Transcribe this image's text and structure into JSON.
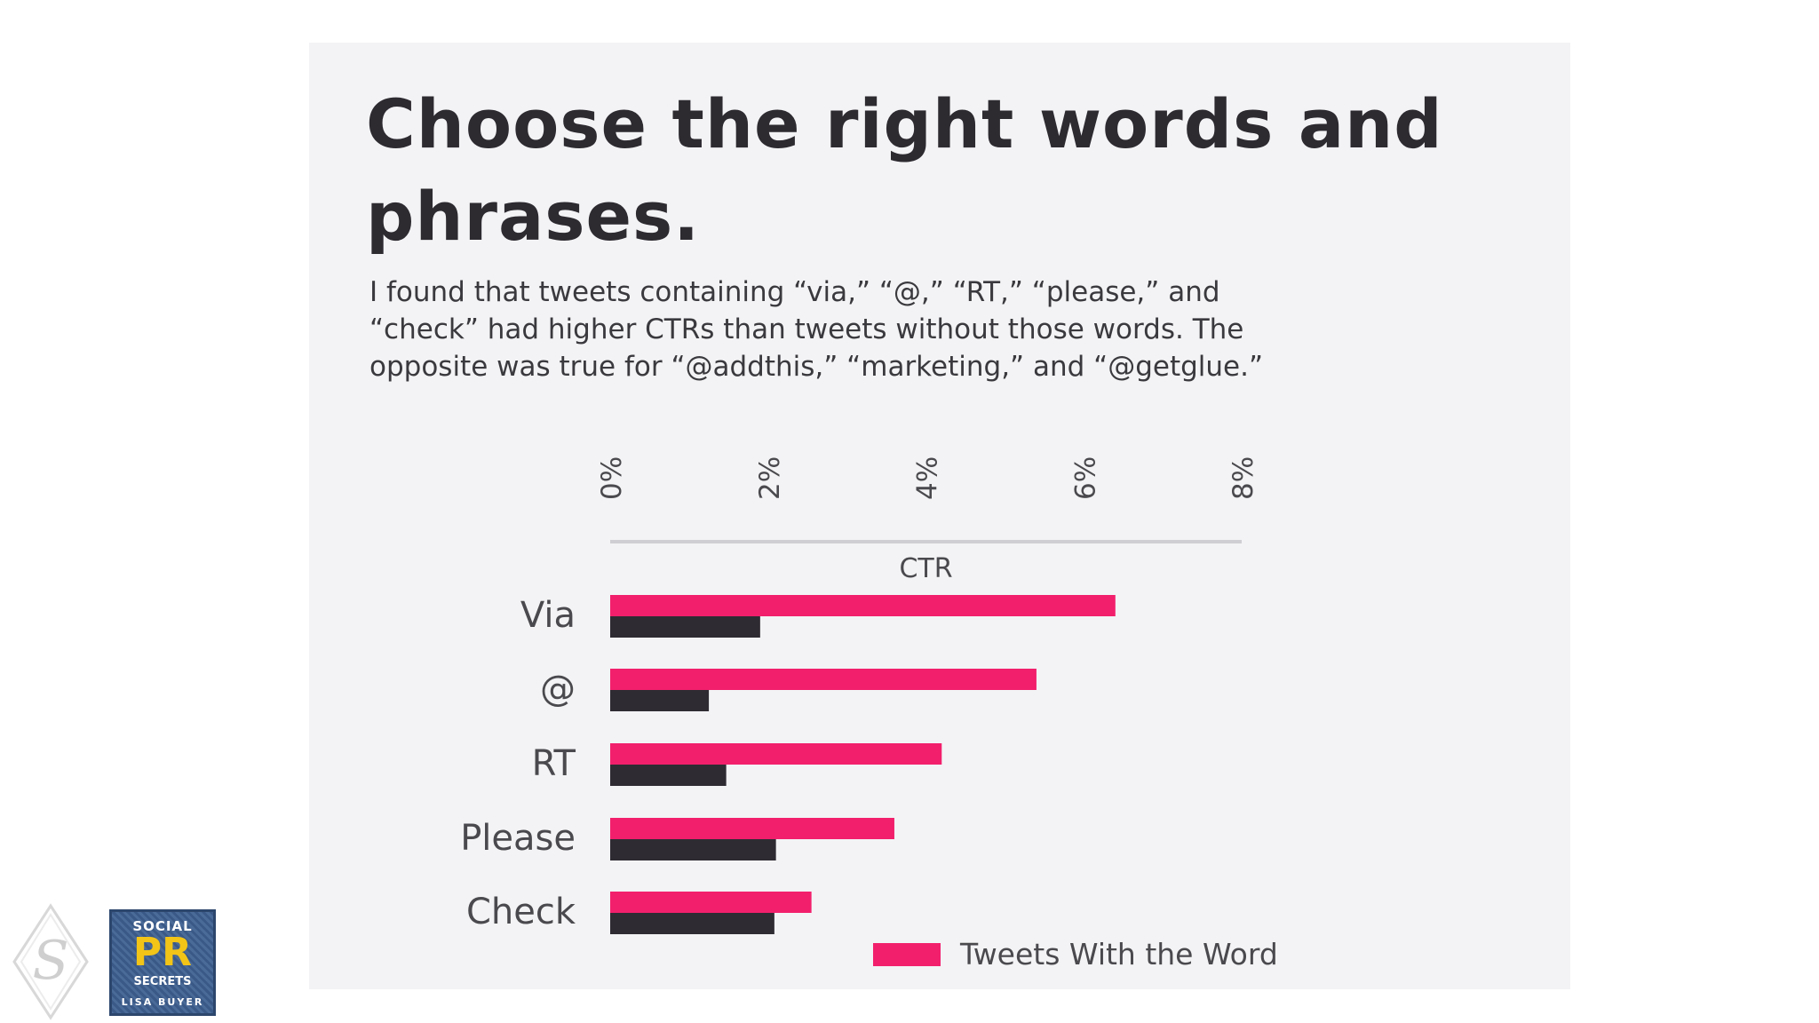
{
  "slide": {
    "title": "Choose the right words and phrases.",
    "body": "I found that tweets containing “via,” “@,” “RT,” “please,” and “check” had higher CTRs than tweets without those words. The opposite was true for “@addthis,” “marketing,” and “@getglue.”"
  },
  "chart_data": {
    "type": "bar",
    "orientation": "horizontal",
    "categories": [
      "Via",
      "@",
      "RT",
      "Please",
      "Check"
    ],
    "series": [
      {
        "name": "Tweets With the Word",
        "color": "#f21f6c",
        "values": [
          6.4,
          5.4,
          4.2,
          3.6,
          2.55
        ]
      },
      {
        "name": "",
        "color": "#2f2b33",
        "values": [
          1.9,
          1.25,
          1.47,
          2.1,
          2.08
        ]
      }
    ],
    "xlabel": "CTR",
    "xlim": [
      0,
      8
    ],
    "xticks": [
      "0%",
      "2%",
      "4%",
      "6%",
      "8%"
    ],
    "tick_values": [
      0,
      2,
      4,
      6,
      8
    ],
    "legend_position": "bottom-right"
  },
  "logos": {
    "left_icon": "s-diamond-logo",
    "book": {
      "line1": "SOCIAL",
      "line2": "PR",
      "line3": "SECRETS",
      "line4": "LISA BUYER"
    }
  }
}
